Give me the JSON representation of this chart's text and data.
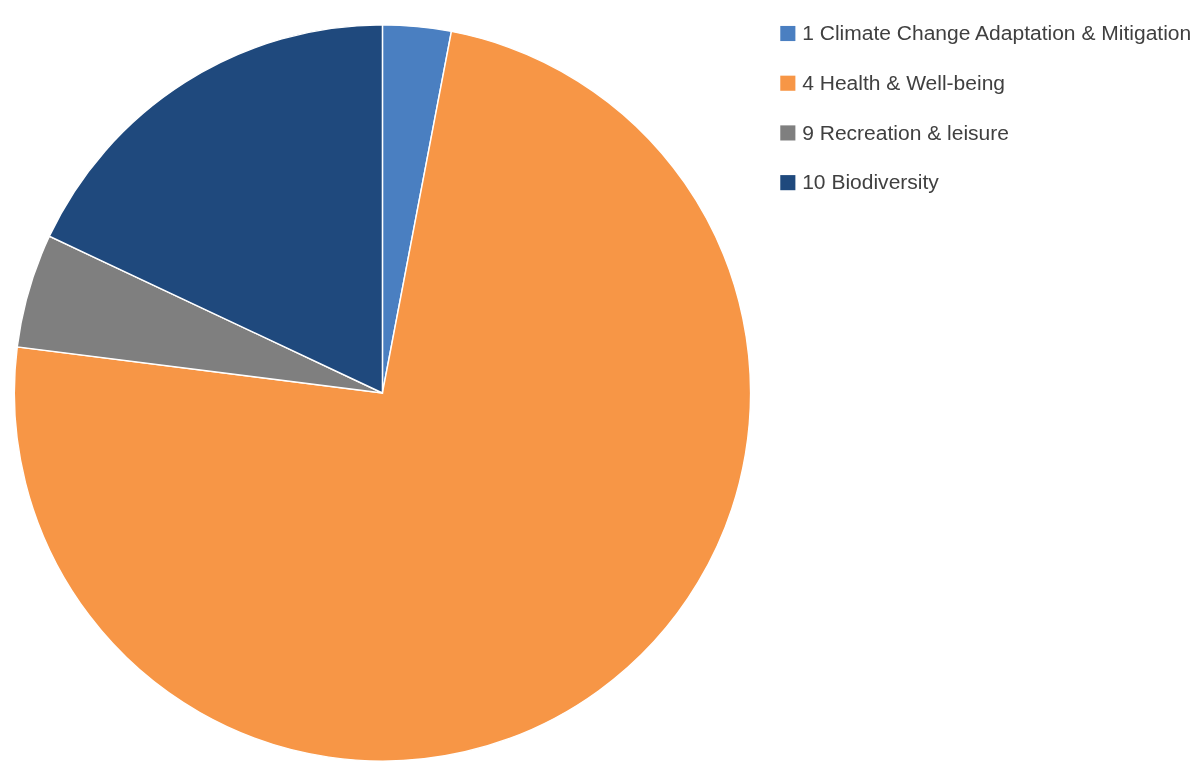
{
  "chart_data": {
    "type": "pie",
    "categories": [
      "1 Climate Change Adaptation & Mitigation",
      "4 Health & Well-being",
      "9 Recreation & leisure",
      "10 Biodiversity"
    ],
    "values": [
      3,
      74,
      5,
      18
    ],
    "colors": [
      "#4a7fc1",
      "#f79646",
      "#7f7f7f",
      "#1f497d"
    ],
    "legend": "right"
  }
}
